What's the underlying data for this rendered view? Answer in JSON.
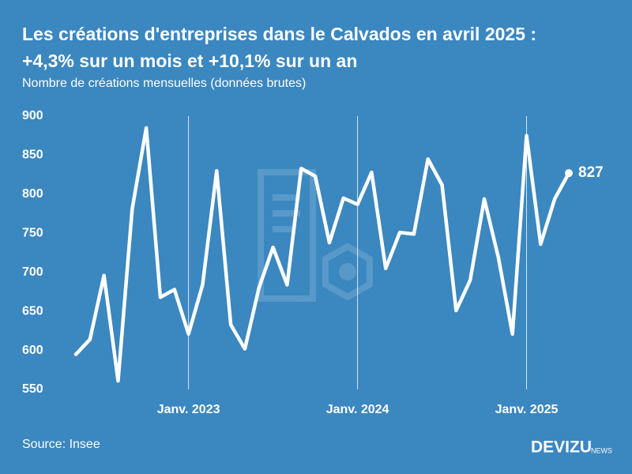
{
  "chart_data": {
    "type": "line",
    "title": [
      "Les créations d'entreprises dans le Calvados en avril 2025 :",
      "+4,3% sur un mois et +10,1% sur un an"
    ],
    "subtitle": "Nombre de créations mensuelles (données brutes)",
    "source": "Source: Insee",
    "logo": {
      "main": "DEVIZU",
      "sub": "NEWS"
    },
    "categories": [
      null,
      null,
      null,
      null,
      null,
      null,
      null,
      null,
      "Janv. 2023",
      null,
      null,
      null,
      null,
      null,
      null,
      null,
      null,
      null,
      null,
      null,
      "Janv. 2024",
      null,
      null,
      null,
      null,
      null,
      null,
      null,
      null,
      null,
      null,
      null,
      "Janv. 2025",
      null,
      null,
      null
    ],
    "series": [
      {
        "name": "Créations",
        "color": "#ffffff",
        "values": [
          595,
          614,
          696,
          561,
          781,
          885,
          668,
          678,
          621,
          684,
          830,
          633,
          602,
          680,
          732,
          684,
          833,
          823,
          738,
          795,
          787,
          828,
          705,
          751,
          749,
          845,
          812,
          651,
          690,
          794,
          719,
          621,
          875,
          736,
          794,
          827
        ]
      }
    ],
    "ylim": [
      550,
      900
    ],
    "yticks": [
      550,
      600,
      650,
      700,
      750,
      800,
      850,
      900
    ],
    "xgrid": true,
    "grid": false
  }
}
